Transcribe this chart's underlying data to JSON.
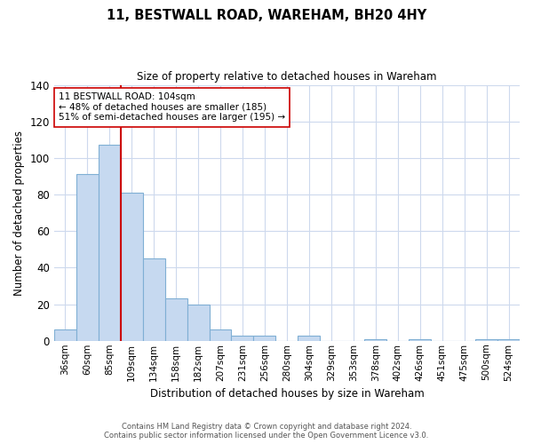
{
  "title": "11, BESTWALL ROAD, WAREHAM, BH20 4HY",
  "subtitle": "Size of property relative to detached houses in Wareham",
  "xlabel": "Distribution of detached houses by size in Wareham",
  "ylabel": "Number of detached properties",
  "bar_labels": [
    "36sqm",
    "60sqm",
    "85sqm",
    "109sqm",
    "134sqm",
    "158sqm",
    "182sqm",
    "207sqm",
    "231sqm",
    "256sqm",
    "280sqm",
    "304sqm",
    "329sqm",
    "353sqm",
    "378sqm",
    "402sqm",
    "426sqm",
    "451sqm",
    "475sqm",
    "500sqm",
    "524sqm"
  ],
  "bar_heights": [
    6,
    91,
    107,
    81,
    45,
    23,
    20,
    6,
    3,
    3,
    0,
    3,
    0,
    0,
    1,
    0,
    1,
    0,
    0,
    1,
    1
  ],
  "bar_color": "#c6d9f0",
  "bar_edge_color": "#7fafd4",
  "vline_color": "#cc0000",
  "vline_bar_index": 2,
  "ylim": [
    0,
    140
  ],
  "yticks": [
    0,
    20,
    40,
    60,
    80,
    100,
    120,
    140
  ],
  "annotation_title": "11 BESTWALL ROAD: 104sqm",
  "annotation_line1": "← 48% of detached houses are smaller (185)",
  "annotation_line2": "51% of semi-detached houses are larger (195) →",
  "footer1": "Contains HM Land Registry data © Crown copyright and database right 2024.",
  "footer2": "Contains public sector information licensed under the Open Government Licence v3.0.",
  "background_color": "#ffffff",
  "grid_color": "#cdd9ed"
}
